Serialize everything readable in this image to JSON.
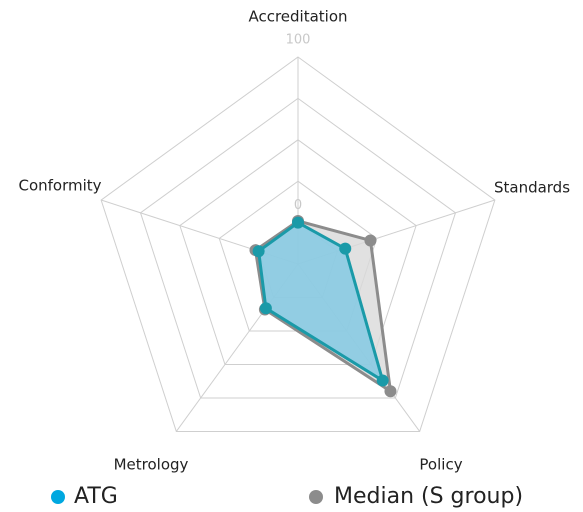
{
  "chart_data": {
    "type": "radar",
    "categories": [
      "Accreditation",
      "Standards",
      "Policy",
      "Metrology",
      "Conformity"
    ],
    "series": [
      {
        "name": "Median (S group)",
        "color": "#8c8c8c",
        "fill": "#d9d9d9",
        "values": [
          1,
          21,
          70,
          9,
          2
        ]
      },
      {
        "name": "ATG",
        "color": "#00a8e0",
        "line": "#1a9aa8",
        "fill": "#7ec8e3",
        "values": [
          0,
          5,
          62,
          8,
          0
        ]
      }
    ],
    "ylim": [
      -25,
      100
    ],
    "yticks": [
      0,
      25,
      50,
      75,
      100
    ],
    "tick_labels_shown": [
      0,
      100
    ],
    "grid": true
  }
}
